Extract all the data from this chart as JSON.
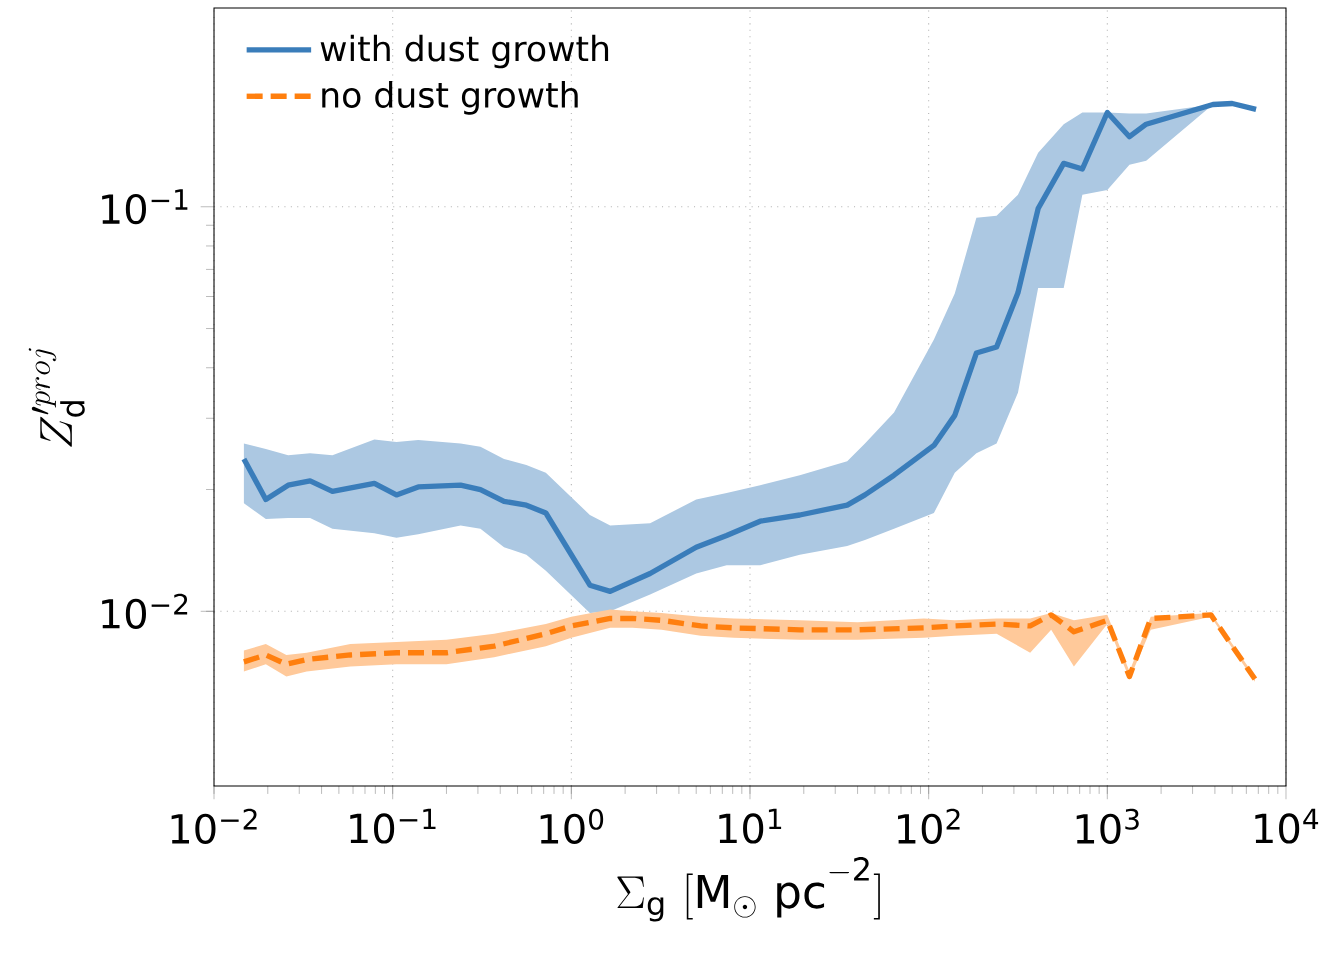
{
  "chart_data": {
    "type": "line",
    "xlabel": "\\Sigma_{\\rm g}\\ [{\\rm M_\\odot\\ pc^{-2}}]",
    "ylabel": "Z_{\\rm d}^{\\prime proj}",
    "log": "xy",
    "grid": true,
    "legend": "top left",
    "xlim": [
      0.01,
      10000
    ],
    "ylim": [
      0.0037,
      0.31
    ],
    "xticks": [
      {
        "value": 0.01,
        "label": "10$^{−2}$"
      },
      {
        "value": 0.1,
        "label": "10$^{−1}$"
      },
      {
        "value": 1,
        "label": "10$^{0}$"
      },
      {
        "value": 10,
        "label": "10$^{1}$"
      },
      {
        "value": 100,
        "label": "10$^{2}$"
      },
      {
        "value": 1000,
        "label": "10$^{3}$"
      },
      {
        "value": 10000,
        "label": "10$^{4}$"
      }
    ],
    "yticks": [
      {
        "value": 0.01,
        "label": "10$^{−2}$"
      },
      {
        "value": 0.1,
        "label": "10$^{−1}$"
      }
    ],
    "series": [
      {
        "name": "with dust growth",
        "color": "#3a7dba",
        "line_style": "solid",
        "x": [
          0.0147,
          0.0195,
          0.026,
          0.0345,
          0.046,
          0.079,
          0.105,
          0.139,
          0.24,
          0.31,
          0.42,
          0.56,
          0.72,
          1.27,
          1.65,
          2.76,
          5.0,
          7.4,
          11.4,
          19,
          35,
          44,
          64,
          107,
          140,
          185,
          240,
          316,
          410,
          570,
          725,
          1000,
          1330,
          1650,
          3900,
          5000,
          6800
        ],
        "values": [
          0.0238,
          0.0189,
          0.0205,
          0.021,
          0.0198,
          0.0207,
          0.0194,
          0.0203,
          0.0205,
          0.02,
          0.0187,
          0.0183,
          0.0175,
          0.0116,
          0.0112,
          0.0124,
          0.0144,
          0.0154,
          0.0167,
          0.0173,
          0.0183,
          0.0194,
          0.0217,
          0.0257,
          0.0305,
          0.0435,
          0.045,
          0.0613,
          0.099,
          0.128,
          0.124,
          0.171,
          0.149,
          0.16,
          0.179,
          0.18,
          0.174
        ],
        "lower": [
          0.0185,
          0.0169,
          0.017,
          0.017,
          0.016,
          0.0156,
          0.0152,
          0.0155,
          0.0163,
          0.016,
          0.0144,
          0.0138,
          0.0126,
          0.0099,
          0.01,
          0.011,
          0.0124,
          0.013,
          0.013,
          0.0138,
          0.0145,
          0.015,
          0.016,
          0.0175,
          0.022,
          0.0246,
          0.026,
          0.0347,
          0.063,
          0.063,
          0.107,
          0.11,
          0.127,
          0.13,
          0.179,
          0.18,
          0.174
        ],
        "upper": [
          0.026,
          0.0252,
          0.0243,
          0.0246,
          0.0243,
          0.0266,
          0.0262,
          0.0265,
          0.026,
          0.0255,
          0.0238,
          0.023,
          0.022,
          0.0173,
          0.0163,
          0.0165,
          0.0189,
          0.0196,
          0.0205,
          0.0217,
          0.0235,
          0.026,
          0.031,
          0.047,
          0.061,
          0.094,
          0.095,
          0.107,
          0.136,
          0.16,
          0.171,
          0.171,
          0.17,
          0.17,
          0.179,
          0.18,
          0.174
        ]
      },
      {
        "name": "no dust growth",
        "color": "#ff7f0e",
        "line_style": "dashed",
        "x": [
          0.0147,
          0.0195,
          0.0254,
          0.033,
          0.058,
          0.105,
          0.2,
          0.37,
          0.72,
          1.0,
          1.65,
          2.2,
          3.2,
          5.3,
          8.1,
          19,
          40,
          94,
          140,
          240,
          370,
          485,
          650,
          1000,
          1330,
          1750,
          3800,
          6700
        ],
        "values": [
          0.0075,
          0.0078,
          0.0074,
          0.0076,
          0.0078,
          0.0079,
          0.0079,
          0.0082,
          0.0088,
          0.0092,
          0.0096,
          0.0096,
          0.0095,
          0.0092,
          0.0091,
          0.009,
          0.009,
          0.0091,
          0.0092,
          0.0093,
          0.0092,
          0.0098,
          0.0089,
          0.0095,
          0.0069,
          0.0096,
          0.0098,
          0.0068
        ],
        "lower": [
          0.0071,
          0.0074,
          0.0069,
          0.0071,
          0.0073,
          0.0074,
          0.0074,
          0.0077,
          0.0082,
          0.0086,
          0.0091,
          0.0091,
          0.009,
          0.0087,
          0.0086,
          0.0085,
          0.0085,
          0.0086,
          0.0087,
          0.0088,
          0.0079,
          0.009,
          0.0073,
          0.0093,
          0.0068,
          0.009,
          0.0097,
          0.0067
        ],
        "upper": [
          0.008,
          0.0083,
          0.0078,
          0.0079,
          0.0083,
          0.0084,
          0.0085,
          0.0088,
          0.0093,
          0.0097,
          0.0101,
          0.01,
          0.0099,
          0.0097,
          0.0096,
          0.0095,
          0.0094,
          0.0096,
          0.0095,
          0.0096,
          0.0096,
          0.0099,
          0.0095,
          0.0098,
          0.0071,
          0.0097,
          0.0099,
          0.0069
        ]
      }
    ]
  }
}
